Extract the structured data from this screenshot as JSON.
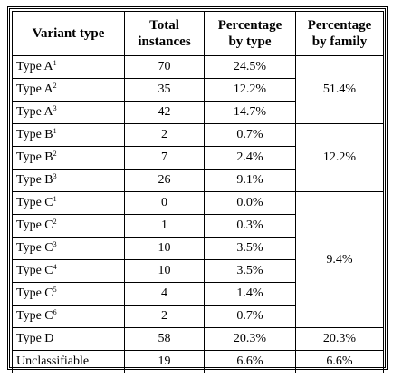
{
  "table": {
    "headers": [
      "Variant type",
      "Total instances",
      "Percentage by type",
      "Percentage by family"
    ],
    "header_lines": [
      [
        "Variant type"
      ],
      [
        "Total",
        "instances"
      ],
      [
        "Percentage",
        "by type"
      ],
      [
        "Percentage",
        "by family"
      ]
    ],
    "rows": [
      {
        "base": "Type A",
        "sup": "1",
        "instances": "70",
        "pct_type": "24.5%"
      },
      {
        "base": "Type A",
        "sup": "2",
        "instances": "35",
        "pct_type": "12.2%"
      },
      {
        "base": "Type A",
        "sup": "3",
        "instances": "42",
        "pct_type": "14.7%"
      },
      {
        "base": "Type B",
        "sup": "1",
        "instances": "2",
        "pct_type": "0.7%"
      },
      {
        "base": "Type B",
        "sup": "2",
        "instances": "7",
        "pct_type": "2.4%"
      },
      {
        "base": "Type B",
        "sup": "3",
        "instances": "26",
        "pct_type": "9.1%"
      },
      {
        "base": "Type C",
        "sup": "1",
        "instances": "0",
        "pct_type": "0.0%"
      },
      {
        "base": "Type C",
        "sup": "2",
        "instances": "1",
        "pct_type": "0.3%"
      },
      {
        "base": "Type C",
        "sup": "3",
        "instances": "10",
        "pct_type": "3.5%"
      },
      {
        "base": "Type C",
        "sup": "4",
        "instances": "10",
        "pct_type": "3.5%"
      },
      {
        "base": "Type C",
        "sup": "5",
        "instances": "4",
        "pct_type": "1.4%"
      },
      {
        "base": "Type C",
        "sup": "6",
        "instances": "2",
        "pct_type": "0.7%"
      },
      {
        "base": "Type D",
        "sup": "",
        "instances": "58",
        "pct_type": "20.3%"
      },
      {
        "base": "Unclassifiable",
        "sup": "",
        "instances": "19",
        "pct_type": "6.6%"
      }
    ],
    "families": [
      {
        "name": "A",
        "pct": "51.4%"
      },
      {
        "name": "B",
        "pct": "12.2%"
      },
      {
        "name": "C",
        "pct": "9.4%"
      },
      {
        "name": "D",
        "pct": "20.3%"
      },
      {
        "name": "Unclassifiable",
        "pct": "6.6%"
      }
    ]
  }
}
